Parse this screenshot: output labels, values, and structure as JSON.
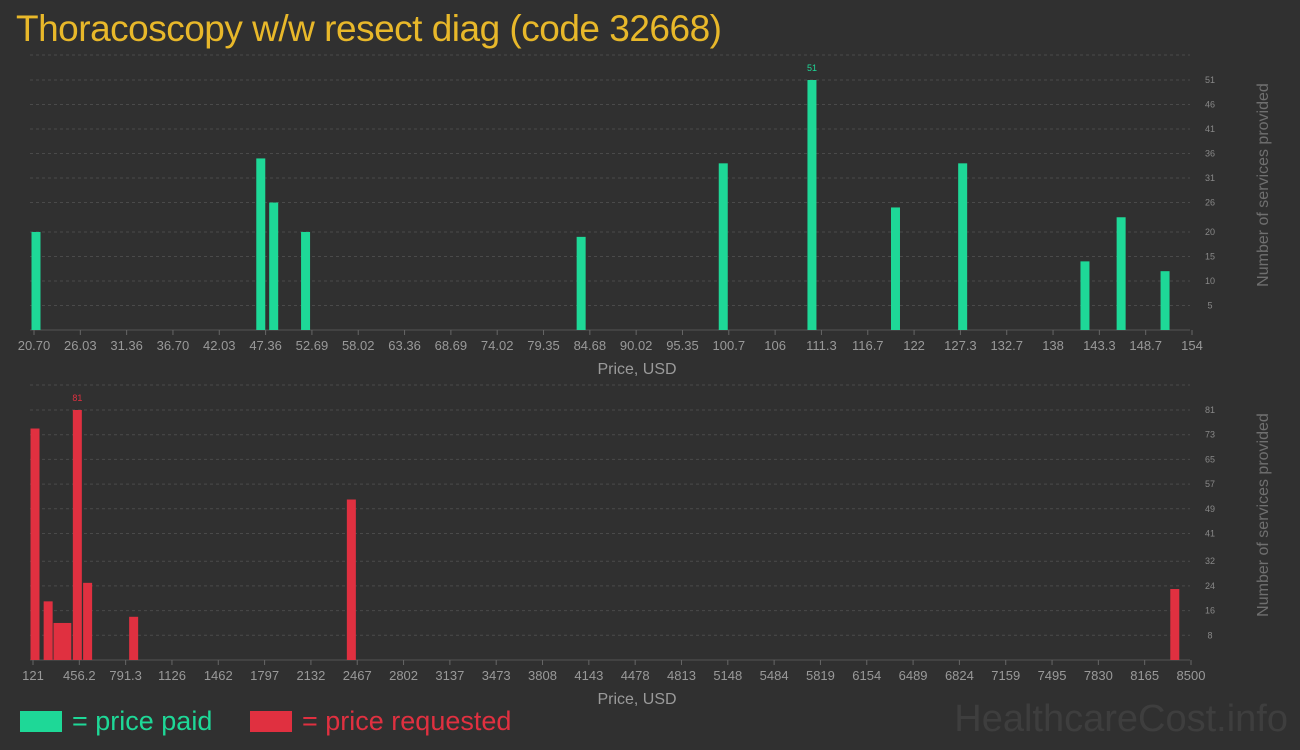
{
  "title": "Thoracoscopy w/w resect diag (code 32668)",
  "legend": {
    "paid_label": "= price paid",
    "requested_label": "= price requested"
  },
  "watermark": "HealthcareCost.info",
  "colors": {
    "background": "#303030",
    "title": "#e8b82a",
    "paid": "#1ed897",
    "requested": "#e03040",
    "grid": "#4a4a4a",
    "axis_text": "#999999"
  },
  "chart_data": [
    {
      "type": "bar",
      "name": "paid",
      "xlabel": "Price, USD",
      "ylabel": "Number of services provided",
      "xlim": [
        20.7,
        154
      ],
      "ylim": [
        0,
        51
      ],
      "x_ticks": [
        "20.70",
        "26.03",
        "31.36",
        "36.70",
        "42.03",
        "47.36",
        "52.69",
        "58.02",
        "63.36",
        "68.69",
        "74.02",
        "79.35",
        "84.68",
        "90.02",
        "95.35",
        "100.7",
        "106",
        "111.3",
        "116.7",
        "122",
        "127.3",
        "132.7",
        "138",
        "143.3",
        "148.7",
        "154"
      ],
      "y_ticks": [
        5,
        10,
        15,
        20,
        26,
        31,
        36,
        41,
        46,
        51
      ],
      "grid": true,
      "x": [
        20.7,
        46.8,
        48.3,
        52.0,
        84.0,
        100.5,
        110.8,
        120.5,
        128.3,
        142.5,
        146.7,
        151.8
      ],
      "values": [
        20,
        35,
        26,
        20,
        19,
        34,
        51,
        25,
        34,
        14,
        23,
        12
      ],
      "labels": [
        {
          "x": 110.8,
          "text": "51"
        }
      ]
    },
    {
      "type": "bar",
      "name": "requested",
      "xlabel": "Price, USD",
      "ylabel": "Number of services provided",
      "xlim": [
        121,
        8500
      ],
      "ylim": [
        0,
        81
      ],
      "x_ticks": [
        "121",
        "456.2",
        "791.3",
        "1126",
        "1462",
        "1797",
        "2132",
        "2467",
        "2802",
        "3137",
        "3473",
        "3808",
        "4143",
        "4478",
        "4813",
        "5148",
        "5484",
        "5819",
        "6154",
        "6489",
        "6824",
        "7159",
        "7495",
        "7830",
        "8165",
        "8500"
      ],
      "y_ticks": [
        8,
        16,
        24,
        32,
        41,
        49,
        57,
        65,
        73,
        81
      ],
      "grid": true,
      "x": [
        121,
        217,
        289,
        353,
        430,
        505,
        841,
        2430,
        8440
      ],
      "values": [
        75,
        19,
        12,
        12,
        81,
        25,
        14,
        52,
        23
      ],
      "labels": [
        {
          "x": 430,
          "text": "81"
        }
      ]
    }
  ]
}
